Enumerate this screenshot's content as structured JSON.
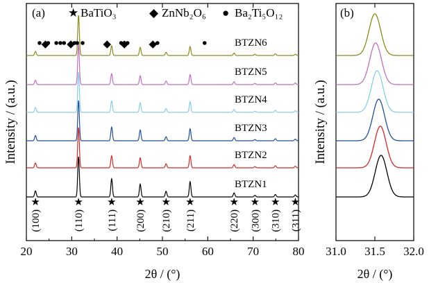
{
  "chart_data": [
    {
      "panel_label": "(a)",
      "type": "line",
      "xlabel": "2θ / (°)",
      "ylabel": "Intensity / (a.u.)",
      "xlim": [
        20,
        80
      ],
      "xticks": [
        20,
        30,
        40,
        50,
        60,
        70,
        80
      ],
      "x_tick_labels": [
        "20",
        "30",
        "40",
        "50",
        "60",
        "70",
        "80"
      ],
      "legend": [
        {
          "marker": "★",
          "label": "BaTiO₃"
        },
        {
          "marker": "◆",
          "label": "ZnNb₂O₆"
        },
        {
          "marker": "●",
          "label": "Ba₂Ti₅O₁₂"
        }
      ],
      "peaks_2theta": [
        22.0,
        31.5,
        38.8,
        45.1,
        50.8,
        56.1,
        65.8,
        70.4,
        74.9,
        79.3
      ],
      "peak_labels": [
        "(100)",
        "(110)",
        "(111)",
        "(200)",
        "(210)",
        "(211)",
        "(220)",
        "(300)",
        "(310)",
        "(311)"
      ],
      "secondary_phase_markers": {
        "sample": "BTZN6",
        "ZnNb2O6": [
          24.2,
          29.8,
          37.8,
          41.6,
          47.9
        ],
        "Ba2Ti5O12": [
          22.9,
          24.8,
          26.6,
          27.5,
          28.3,
          30.6,
          31.2,
          32.4,
          40.9,
          42.3,
          48.9,
          59.3
        ]
      },
      "series": [
        {
          "name": "BTZN1",
          "color": "#000000",
          "relative_intensities": [
            0.15,
            1.0,
            0.45,
            0.32,
            0.14,
            0.38,
            0.1,
            0.04,
            0.06,
            0.05
          ]
        },
        {
          "name": "BTZN2",
          "color": "#d62728",
          "relative_intensities": [
            0.12,
            1.0,
            0.3,
            0.25,
            0.1,
            0.3,
            0.08,
            0.03,
            0.05,
            0.04
          ]
        },
        {
          "name": "BTZN3",
          "color": "#1f4e9c",
          "relative_intensities": [
            0.13,
            1.0,
            0.34,
            0.27,
            0.1,
            0.3,
            0.08,
            0.03,
            0.05,
            0.04
          ]
        },
        {
          "name": "BTZN4",
          "color": "#87ceeb",
          "relative_intensities": [
            0.12,
            1.0,
            0.28,
            0.24,
            0.09,
            0.27,
            0.07,
            0.03,
            0.05,
            0.04
          ]
        },
        {
          "name": "BTZN5",
          "color": "#c06ec0",
          "relative_intensities": [
            0.11,
            1.0,
            0.27,
            0.22,
            0.09,
            0.25,
            0.07,
            0.03,
            0.04,
            0.04
          ]
        },
        {
          "name": "BTZN6",
          "color": "#8b8b1a",
          "relative_intensities": [
            0.1,
            1.0,
            0.24,
            0.2,
            0.08,
            0.22,
            0.06,
            0.03,
            0.04,
            0.03
          ]
        }
      ]
    },
    {
      "panel_label": "(b)",
      "type": "line",
      "xlabel": "2θ / (°)",
      "ylabel": "Intensity / (a.u.)",
      "xlim": [
        31.0,
        32.0
      ],
      "xticks": [
        31.0,
        31.5,
        32.0
      ],
      "x_tick_labels": [
        "31.0",
        "31.5",
        "32.0"
      ],
      "series": [
        {
          "name": "BTZN1",
          "color": "#000000",
          "peak_center": 31.58
        },
        {
          "name": "BTZN2",
          "color": "#d62728",
          "peak_center": 31.57
        },
        {
          "name": "BTZN3",
          "color": "#1f4e9c",
          "peak_center": 31.55
        },
        {
          "name": "BTZN4",
          "color": "#87ceeb",
          "peak_center": 31.53
        },
        {
          "name": "BTZN5",
          "color": "#c06ec0",
          "peak_center": 31.51
        },
        {
          "name": "BTZN6",
          "color": "#8b8b1a",
          "peak_center": 31.5
        }
      ]
    }
  ]
}
